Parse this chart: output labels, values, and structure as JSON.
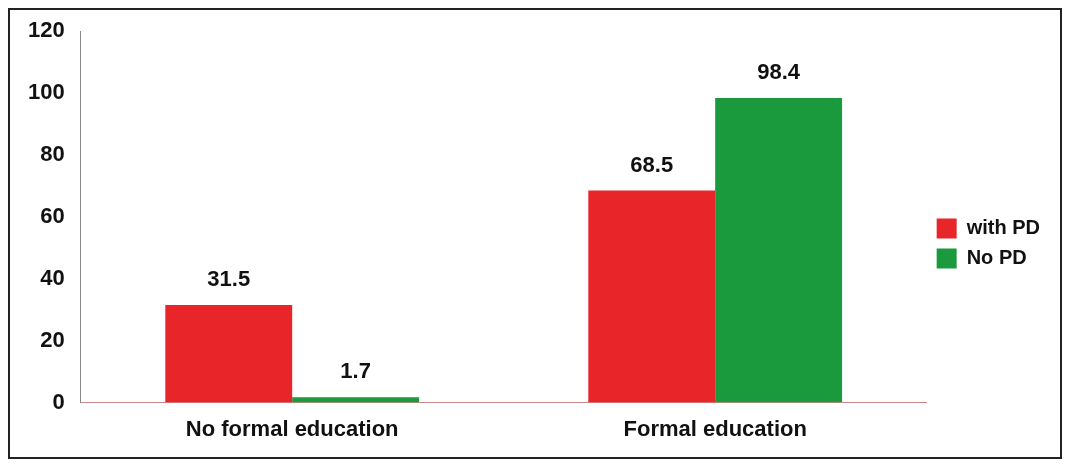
{
  "chart_data": {
    "type": "bar",
    "categories": [
      "No formal education",
      "Formal education"
    ],
    "series": [
      {
        "name": "with PD",
        "color": "#e8262a",
        "values": [
          31.5,
          68.5
        ]
      },
      {
        "name": "No PD",
        "color": "#1a9a3c",
        "values": [
          1.7,
          98.4
        ]
      }
    ],
    "ylim": [
      0,
      120
    ],
    "yticks": [
      0,
      20,
      40,
      60,
      80,
      100,
      120
    ],
    "data_labels": true,
    "legend": "right",
    "grid": false
  }
}
